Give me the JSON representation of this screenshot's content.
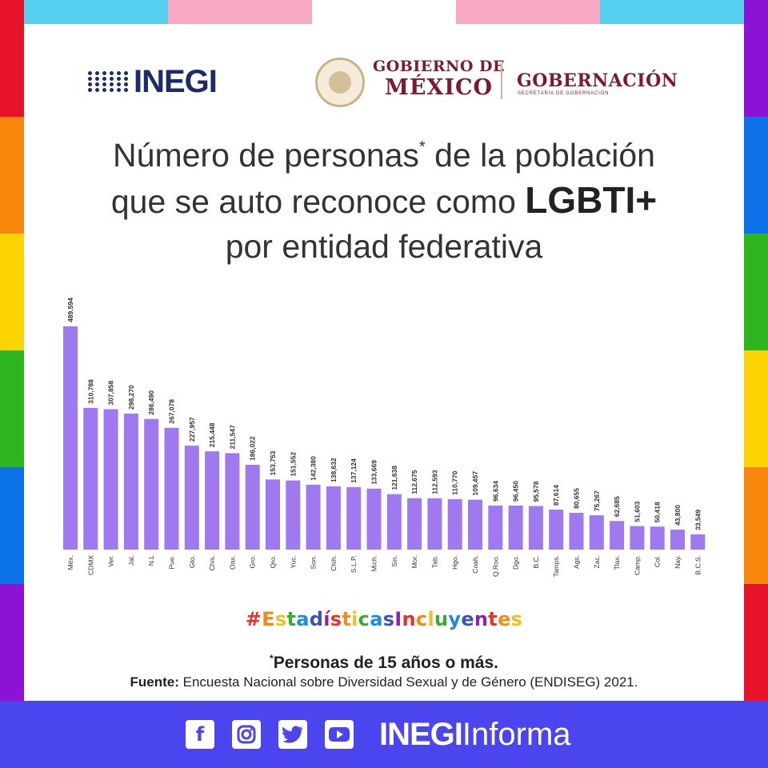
{
  "header": {
    "inegi_logo": "INEGI",
    "gobierno_line1": "GOBIERNO DE",
    "gobierno_line2": "MÉXICO",
    "gobernacion": "GOBERNACIÓN",
    "gobernacion_sub": "SECRETARÍA DE GOBERNACIÓN"
  },
  "title": {
    "line1_a": "Número de personas",
    "line1_mark": "*",
    "line1_b": " de la población",
    "line2_a": "que se auto reconoce como ",
    "line2_bold": "LGBTI+",
    "line3": "por entidad federativa"
  },
  "chart_data": {
    "type": "bar",
    "title": "Número de personas* de la población que se auto reconoce como LGBTI+ por entidad federativa",
    "categories": [
      "Méx.",
      "CDMX",
      "Ver.",
      "Jal.",
      "N.L",
      "Pue.",
      "Gto.",
      "Chis.",
      "Oax.",
      "Gro.",
      "Qro.",
      "Yuc.",
      "Son.",
      "Chih.",
      "S.L.P.",
      "Mich.",
      "Sin.",
      "Mor.",
      "Tab.",
      "Hgo.",
      "Coah.",
      "Q.Roo.",
      "Dgo.",
      "B.C.",
      "Tamps.",
      "Ags.",
      "Zac.",
      "Tlax.",
      "Camp.",
      "Col.",
      "Nay.",
      "B.C.S."
    ],
    "values": [
      489594,
      310788,
      307858,
      298270,
      286490,
      267078,
      227957,
      215448,
      211547,
      186022,
      153753,
      151552,
      142380,
      138632,
      137124,
      133669,
      121638,
      112675,
      112593,
      110770,
      109457,
      96634,
      96450,
      95578,
      87614,
      80655,
      75267,
      62685,
      51603,
      50418,
      43800,
      33549
    ],
    "value_labels": [
      "489,594",
      "310,788",
      "307,858",
      "298,270",
      "286,490",
      "267,078",
      "227,957",
      "215,448",
      "211,547",
      "186,022",
      "153,753",
      "151,552",
      "142,380",
      "138,632",
      "137,124",
      "133,669",
      "121,638",
      "112,675",
      "112,593",
      "110,770",
      "109,457",
      "96,634",
      "96,450",
      "95,578",
      "87,614",
      "80,655",
      "75,267",
      "62,685",
      "51,603",
      "50,418",
      "43,800",
      "33,549"
    ],
    "xlabel": "",
    "ylabel": "",
    "ylim": [
      0,
      500000
    ],
    "bar_color": "#a078f0",
    "grid": false,
    "legend": "none"
  },
  "hashtag": {
    "text": "#EstadísticasIncluyentes",
    "colors": [
      "#e6332a",
      "#f08a1c",
      "#f0c020",
      "#3aa935",
      "#1e88e5",
      "#3f51b5",
      "#8e24aa",
      "#e6332a",
      "#f08a1c",
      "#f0c020",
      "#3aa935",
      "#1e88e5",
      "#3f51b5",
      "#8e24aa",
      "#e6332a",
      "#f08a1c",
      "#f0c020",
      "#3aa935",
      "#1e88e5",
      "#3f51b5",
      "#8e24aa",
      "#e6332a",
      "#f08a1c",
      "#f0c020"
    ]
  },
  "footnote": {
    "mark": "*",
    "text": "Personas de 15 años o más."
  },
  "source": {
    "label": "Fuente:",
    "text": " Encuesta Nacional sobre Diversidad Sexual y de Género (ENDISEG) 2021."
  },
  "footer": {
    "social_icons": [
      "facebook-icon",
      "instagram-icon",
      "twitter-icon",
      "youtube-icon"
    ],
    "brand_bold": "INEGI",
    "brand_rest": "Informa"
  },
  "colors": {
    "left_border": [
      "#e8132b",
      "#f7870d",
      "#fcd404",
      "#2fb51f",
      "#0a72e6",
      "#8c13d6"
    ],
    "right_border": [
      "#8c13d6",
      "#0a72e6",
      "#2fb51f",
      "#fcd404",
      "#f7870d",
      "#e8132b"
    ],
    "top_bar": [
      "#56d1f0",
      "#f7a8c3",
      "#ffffff",
      "#f7a8c3",
      "#56d1f0"
    ],
    "footer_bar": "#4b45f0",
    "title_text": "#333333",
    "government_red": "#7b1c2c",
    "inegi_blue": "#1c2c6a"
  }
}
